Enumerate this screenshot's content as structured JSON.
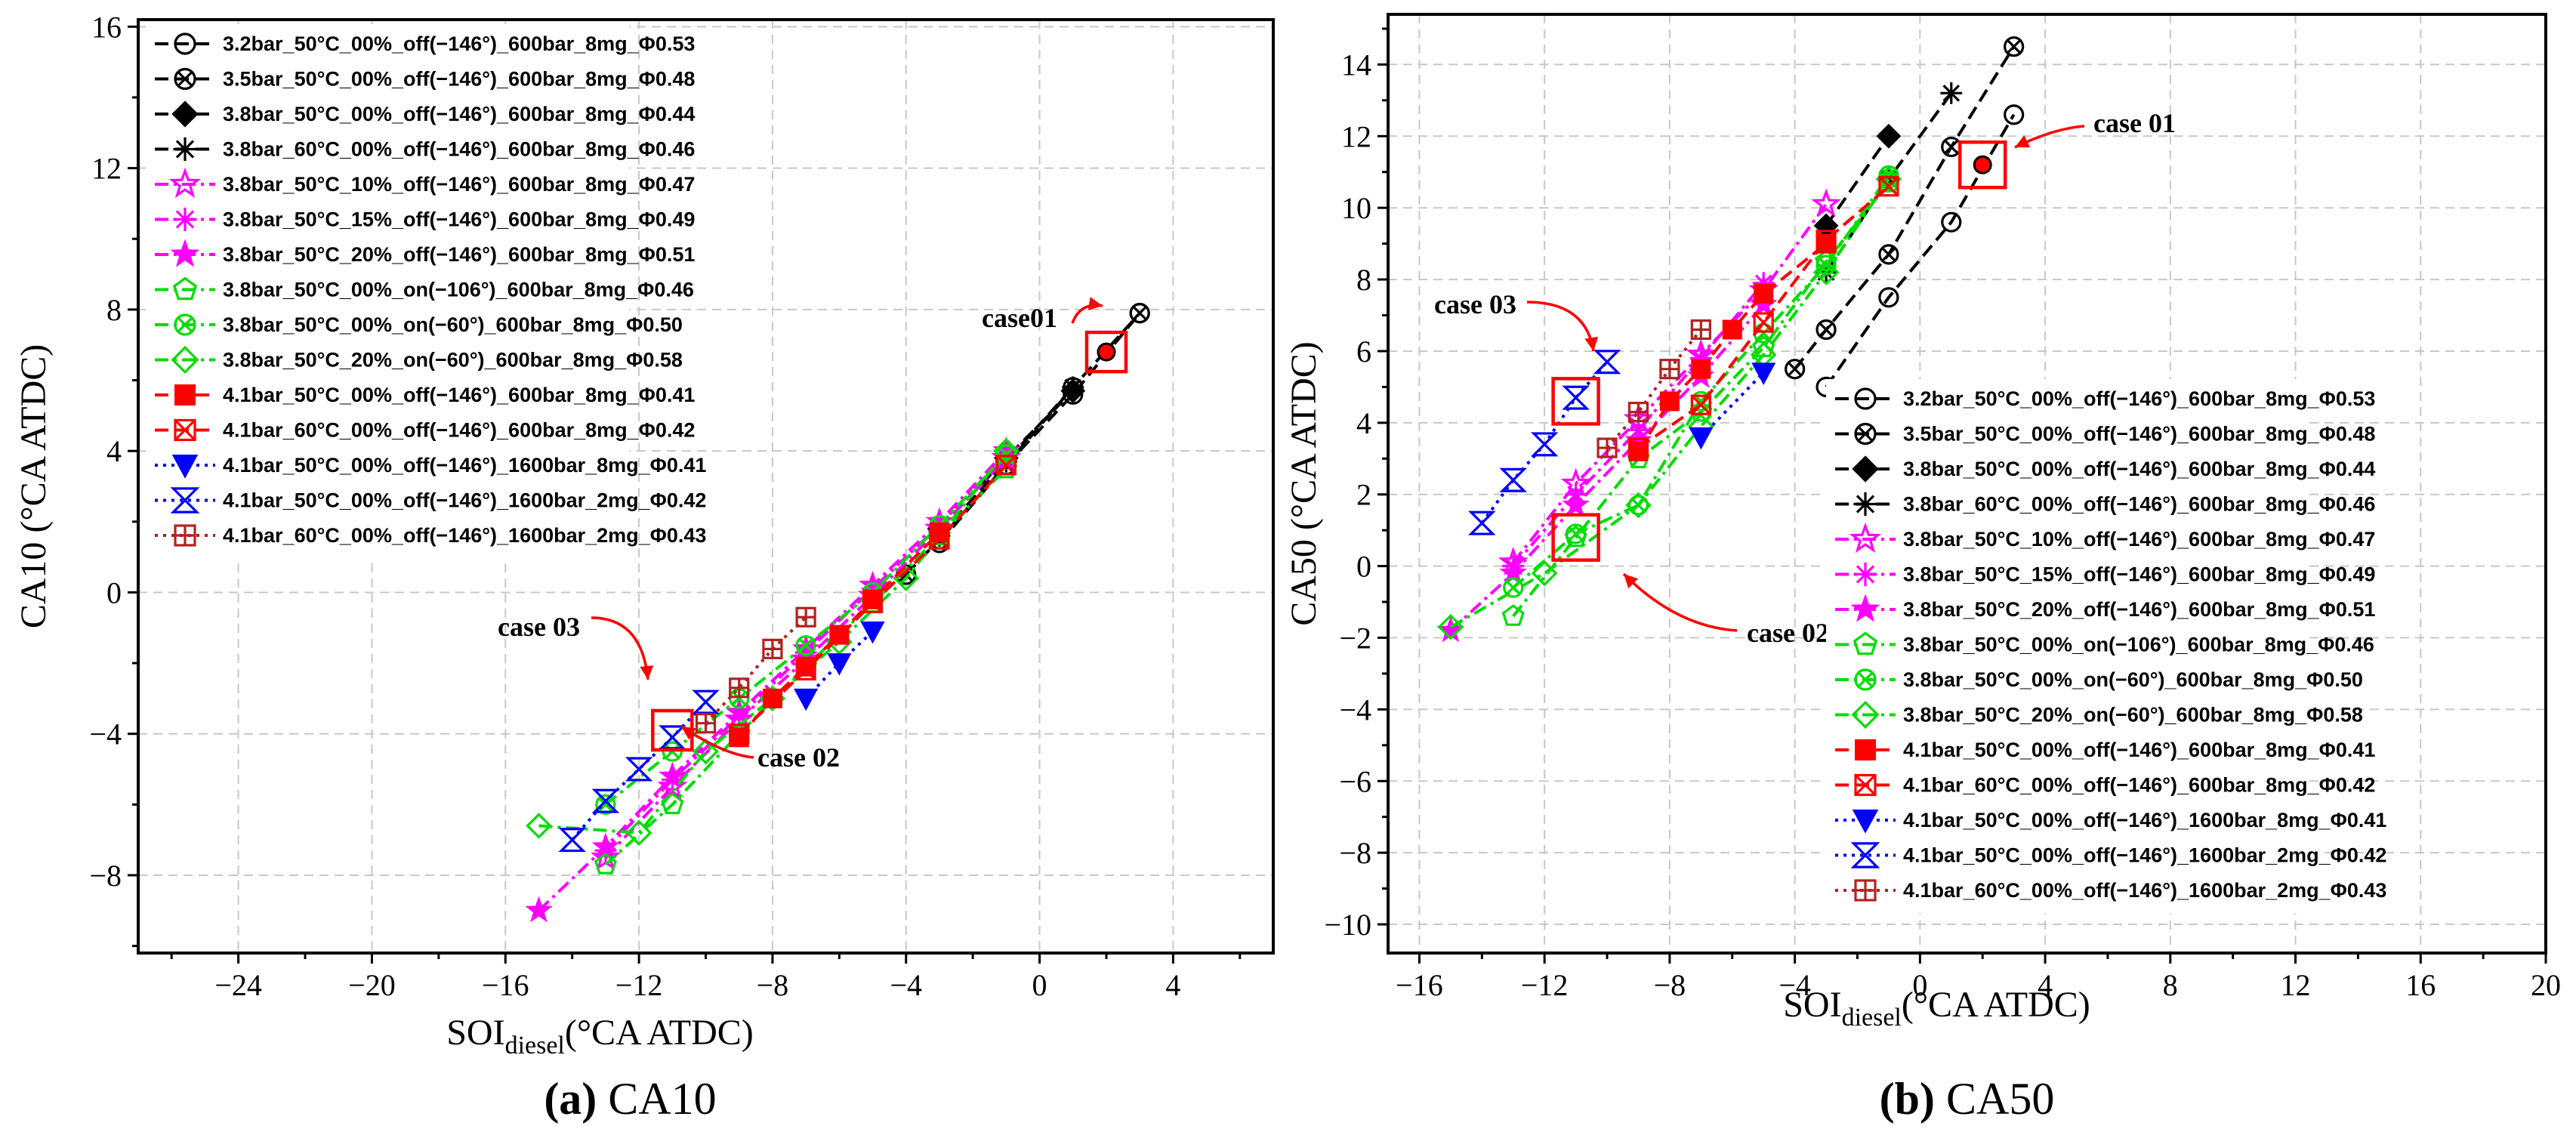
{
  "chart_data": [
    {
      "type": "scatter",
      "panel_caption": {
        "letter": "(a)",
        "text": " CA10"
      },
      "xlabel": {
        "main": "SOI",
        "sub": "diesel",
        "suffix": "(°CA ATDC)"
      },
      "ylabel": "CA10 (°CA ATDC)",
      "xlim": [
        -27,
        7
      ],
      "ylim": [
        -10.2,
        16.2
      ],
      "xticks": [
        -24,
        -20,
        -16,
        -12,
        -8,
        -4,
        0,
        4
      ],
      "yticks": [
        -8,
        -4,
        0,
        4,
        8,
        12,
        16
      ],
      "grid": true,
      "legend_position": "top-left",
      "series": [
        {
          "name": "3.2bar_50°C_00%_off(−146°)_600bar_8mg_Φ0.53",
          "color": "#000000",
          "marker": "circle-open",
          "dash": "dash",
          "points": [
            [
              -3,
              1.4
            ],
            [
              -1,
              3.6
            ],
            [
              1,
              5.6
            ],
            [
              3,
              7.9
            ]
          ]
        },
        {
          "name": "3.5bar_50°C_00%_off(−146°)_600bar_8mg_Φ0.48",
          "color": "#000000",
          "marker": "circle-x",
          "dash": "dash",
          "points": [
            [
              -4,
              0.5
            ],
            [
              -3,
              1.5
            ],
            [
              -1,
              3.6
            ],
            [
              1,
              5.8
            ],
            [
              3,
              7.9
            ]
          ]
        },
        {
          "name": "3.8bar_50°C_00%_off(−146°)_600bar_8mg_Φ0.44",
          "color": "#000000",
          "marker": "diamond",
          "dash": "dash",
          "points": [
            [
              -3,
              1.8
            ],
            [
              -1,
              3.8
            ],
            [
              1,
              5.7
            ]
          ]
        },
        {
          "name": "3.8bar_60°C_00%_off(−146°)_600bar_8mg_Φ0.46",
          "color": "#000000",
          "marker": "asterisk",
          "dash": "dash",
          "points": [
            [
              -3,
              1.6
            ],
            [
              -1,
              3.7
            ],
            [
              1,
              5.8
            ]
          ]
        },
        {
          "name": "3.8bar_50°C_10%_off(−146°)_600bar_8mg_Φ0.47",
          "color": "#ff00ff",
          "marker": "star-open",
          "dash": "dashdot",
          "points": [
            [
              -13,
              -7.5
            ],
            [
              -11,
              -5.5
            ],
            [
              -9,
              -3.6
            ],
            [
              -7,
              -1.9
            ],
            [
              -5,
              -0.1
            ],
            [
              -3,
              1.8
            ],
            [
              -1,
              3.8
            ]
          ]
        },
        {
          "name": "3.8bar_50°C_15%_off(−146°)_600bar_8mg_Φ0.49",
          "color": "#ff00ff",
          "marker": "asterisk",
          "dash": "dashdot",
          "points": [
            [
              -13,
              -7.3
            ],
            [
              -11,
              -5.3
            ],
            [
              -9,
              -3.5
            ],
            [
              -7,
              -1.7
            ],
            [
              -5,
              0.1
            ],
            [
              -3,
              1.9
            ],
            [
              -1,
              3.9
            ]
          ]
        },
        {
          "name": "3.8bar_50°C_20%_off(−146°)_600bar_8mg_Φ0.51",
          "color": "#ff00ff",
          "marker": "star",
          "dash": "dashdot",
          "points": [
            [
              -15,
              -9
            ],
            [
              -13,
              -7.2
            ],
            [
              -11,
              -5.2
            ],
            [
              -9,
              -3.4
            ],
            [
              -7,
              -1.6
            ],
            [
              -5,
              0.2
            ],
            [
              -3,
              2
            ],
            [
              -1,
              4
            ]
          ]
        },
        {
          "name": "3.8bar_50°C_00%_on(−106°)_600bar_8mg_Φ0.46",
          "color": "#00dd00",
          "marker": "pentagon-open",
          "dash": "dashdot",
          "points": [
            [
              -13,
              -7.7
            ],
            [
              -11,
              -6
            ],
            [
              -9,
              -4
            ],
            [
              -7,
              -2.1
            ],
            [
              -5,
              -0.3
            ],
            [
              -3,
              1.6
            ],
            [
              -1,
              3.5
            ]
          ]
        },
        {
          "name": "3.8bar_50°C_00%_on(−60°)_600bar_8mg_Φ0.50",
          "color": "#00dd00",
          "marker": "circle-x",
          "dash": "dashdot",
          "points": [
            [
              -13,
              -6
            ],
            [
              -11,
              -4.5
            ],
            [
              -9,
              -3
            ],
            [
              -7,
              -1.5
            ],
            [
              -5,
              0
            ],
            [
              -3,
              1.9
            ],
            [
              -1,
              3.9
            ]
          ]
        },
        {
          "name": "3.8bar_50°C_20%_on(−60°)_600bar_8mg_Φ0.58",
          "color": "#00dd00",
          "marker": "diamond-open",
          "dash": "dashdot",
          "points": [
            [
              -15,
              -6.6
            ],
            [
              -12,
              -6.8
            ],
            [
              -10,
              -4.5
            ],
            [
              -8,
              -3
            ],
            [
              -6,
              -1.4
            ],
            [
              -4,
              0.4
            ],
            [
              -1,
              4
            ]
          ]
        },
        {
          "name": "4.1bar_50°C_00%_off(−146°)_600bar_8mg_Φ0.41",
          "color": "#ff0000",
          "marker": "square",
          "dash": "dash",
          "points": [
            [
              -9,
              -4.1
            ],
            [
              -8,
              -3
            ],
            [
              -7,
              -2.1
            ],
            [
              -6,
              -1.2
            ],
            [
              -5,
              -0.2
            ],
            [
              -3,
              1.7
            ]
          ]
        },
        {
          "name": "4.1bar_60°C_00%_off(−146°)_600bar_8mg_Φ0.42",
          "color": "#ff0000",
          "marker": "square-x",
          "dash": "dash",
          "points": [
            [
              -9,
              -4
            ],
            [
              -7,
              -2.2
            ],
            [
              -5,
              -0.3
            ],
            [
              -3,
              1.5
            ],
            [
              -1,
              3.6
            ]
          ]
        },
        {
          "name": "4.1bar_50°C_00%_off(−146°)_1600bar_8mg_Φ0.41",
          "color": "#0000ff",
          "marker": "triangle-down",
          "dash": "dot",
          "points": [
            [
              -7,
              -3
            ],
            [
              -6,
              -2
            ],
            [
              -5,
              -1.1
            ]
          ]
        },
        {
          "name": "4.1bar_50°C_00%_off(−146°)_1600bar_2mg_Φ0.42",
          "color": "#0000ff",
          "marker": "x-hourglass",
          "dash": "dot",
          "points": [
            [
              -14,
              -7
            ],
            [
              -13,
              -5.9
            ],
            [
              -12,
              -5
            ],
            [
              -11,
              -4.1
            ],
            [
              -10,
              -3.1
            ]
          ]
        },
        {
          "name": "4.1bar_60°C_00%_off(−146°)_1600bar_2mg_Φ0.43",
          "color": "#b22222",
          "marker": "square-plus",
          "dash": "dot",
          "points": [
            [
              -10,
              -3.7
            ],
            [
              -9,
              -2.7
            ],
            [
              -8,
              -1.6
            ],
            [
              -7,
              -0.7
            ]
          ]
        }
      ],
      "highlights": [
        {
          "label": "case01",
          "x": 2.0,
          "y": 6.8,
          "dot": true
        },
        {
          "label": "case 03",
          "x": -11.0,
          "y": -3.9,
          "dot": false
        },
        {
          "label": "case 02",
          "x": -11.0,
          "y": -3.9,
          "dot": false
        }
      ]
    },
    {
      "type": "scatter",
      "panel_caption": {
        "letter": "(b)",
        "text": " CA50"
      },
      "xlabel": {
        "main": "SOI",
        "sub": "diesel",
        "suffix": "(°CA ATDC)"
      },
      "ylabel": "CA50 (°CA ATDC)",
      "xlim": [
        -17,
        20
      ],
      "ylim": [
        -10.8,
        15.4
      ],
      "xticks": [
        -16,
        -12,
        -8,
        -4,
        0,
        4,
        8,
        12,
        16,
        20
      ],
      "yticks": [
        -10,
        -8,
        -6,
        -4,
        -2,
        0,
        2,
        4,
        6,
        8,
        10,
        12,
        14
      ],
      "grid": true,
      "legend_position": "bottom-right",
      "series": [
        {
          "name": "3.2bar_50°C_00%_off(−146°)_600bar_8mg_Φ0.53",
          "color": "#000000",
          "marker": "circle-open",
          "dash": "dash",
          "points": [
            [
              -3,
              5
            ],
            [
              -1,
              7.5
            ],
            [
              1,
              9.6
            ],
            [
              3,
              12.6
            ]
          ]
        },
        {
          "name": "3.5bar_50°C_00%_off(−146°)_600bar_8mg_Φ0.48",
          "color": "#000000",
          "marker": "circle-x",
          "dash": "dash",
          "points": [
            [
              -4,
              5.5
            ],
            [
              -3,
              6.6
            ],
            [
              -1,
              8.7
            ],
            [
              1,
              11.7
            ],
            [
              3,
              14.5
            ]
          ]
        },
        {
          "name": "3.8bar_50°C_00%_off(−146°)_600bar_8mg_Φ0.44",
          "color": "#000000",
          "marker": "diamond",
          "dash": "dash",
          "points": [
            [
              -3,
              9.5
            ],
            [
              -1,
              12
            ]
          ]
        },
        {
          "name": "3.8bar_60°C_00%_off(−146°)_600bar_8mg_Φ0.46",
          "color": "#000000",
          "marker": "asterisk",
          "dash": "dash",
          "points": [
            [
              -3,
              8.2
            ],
            [
              -1,
              10.8
            ],
            [
              1,
              13.2
            ]
          ]
        },
        {
          "name": "3.8bar_50°C_10%_off(−146°)_600bar_8mg_Φ0.47",
          "color": "#ff00ff",
          "marker": "star-open",
          "dash": "dashdot",
          "points": [
            [
              -13,
              0.1
            ],
            [
              -11,
              2.3
            ],
            [
              -9,
              4.1
            ],
            [
              -7,
              5.9
            ],
            [
              -5,
              7.7
            ],
            [
              -3,
              10.1
            ]
          ]
        },
        {
          "name": "3.8bar_50°C_15%_off(−146°)_600bar_8mg_Φ0.49",
          "color": "#ff00ff",
          "marker": "asterisk",
          "dash": "dashdot",
          "points": [
            [
              -13,
              0
            ],
            [
              -11,
              2
            ],
            [
              -9,
              3.8
            ],
            [
              -7,
              5.8
            ],
            [
              -5,
              7.9
            ]
          ]
        },
        {
          "name": "3.8bar_50°C_20%_off(−146°)_600bar_8mg_Φ0.51",
          "color": "#ff00ff",
          "marker": "star",
          "dash": "dashdot",
          "points": [
            [
              -15,
              -1.8
            ],
            [
              -13,
              -0.2
            ],
            [
              -11,
              1.7
            ],
            [
              -9,
              3.5
            ],
            [
              -7,
              5.3
            ],
            [
              -5,
              7.3
            ]
          ]
        },
        {
          "name": "3.8bar_50°C_00%_on(−106°)_600bar_8mg_Φ0.46",
          "color": "#00dd00",
          "marker": "pentagon-open",
          "dash": "dashdot",
          "points": [
            [
              -13,
              -1.4
            ],
            [
              -11,
              0.8
            ],
            [
              -9,
              3
            ],
            [
              -7,
              4.3
            ],
            [
              -5,
              6.1
            ],
            [
              -3,
              8.5
            ],
            [
              -1,
              10.7
            ]
          ]
        },
        {
          "name": "3.8bar_50°C_00%_on(−60°)_600bar_8mg_Φ0.50",
          "color": "#00dd00",
          "marker": "circle-x",
          "dash": "dashdot",
          "points": [
            [
              -13,
              -0.6
            ],
            [
              -11,
              0.9
            ],
            [
              -9,
              1.7
            ],
            [
              -7,
              4.6
            ],
            [
              -5,
              6.5
            ],
            [
              -3,
              8.4
            ],
            [
              -1,
              10.9
            ]
          ]
        },
        {
          "name": "3.8bar_50°C_20%_on(−60°)_600bar_8mg_Φ0.58",
          "color": "#00dd00",
          "marker": "diamond-open",
          "dash": "dashdot",
          "points": [
            [
              -15,
              -1.7
            ],
            [
              -12,
              -0.2
            ],
            [
              -9,
              1.7
            ],
            [
              -7,
              3.9
            ],
            [
              -5,
              5.9
            ],
            [
              -3,
              8.2
            ],
            [
              -1,
              10.8
            ]
          ]
        },
        {
          "name": "4.1bar_50°C_00%_off(−146°)_600bar_8mg_Φ0.41",
          "color": "#ff0000",
          "marker": "square",
          "dash": "dash",
          "points": [
            [
              -9,
              3.2
            ],
            [
              -8,
              4.6
            ],
            [
              -7,
              5.5
            ],
            [
              -6,
              6.6
            ],
            [
              -5,
              7.6
            ],
            [
              -3,
              9
            ]
          ]
        },
        {
          "name": "4.1bar_60°C_00%_off(−146°)_600bar_8mg_Φ0.42",
          "color": "#ff0000",
          "marker": "square-x",
          "dash": "dash",
          "points": [
            [
              -9,
              3.3
            ],
            [
              -7,
              4.5
            ],
            [
              -5,
              6.8
            ],
            [
              -3,
              9.1
            ],
            [
              -1,
              10.6
            ]
          ]
        },
        {
          "name": "4.1bar_50°C_00%_off(−146°)_1600bar_8mg_Φ0.41",
          "color": "#0000ff",
          "marker": "triangle-down",
          "dash": "dot",
          "points": [
            [
              -7,
              3.6
            ],
            [
              -5,
              5.4
            ]
          ]
        },
        {
          "name": "4.1bar_50°C_00%_off(−146°)_1600bar_2mg_Φ0.42",
          "color": "#0000ff",
          "marker": "x-hourglass",
          "dash": "dot",
          "points": [
            [
              -14,
              1.2
            ],
            [
              -13,
              2.4
            ],
            [
              -12,
              3.4
            ],
            [
              -11,
              4.7
            ],
            [
              -10,
              5.7
            ]
          ]
        },
        {
          "name": "4.1bar_60°C_00%_off(−146°)_1600bar_2mg_Φ0.43",
          "color": "#b22222",
          "marker": "square-plus",
          "dash": "dot",
          "points": [
            [
              -10,
              3.3
            ],
            [
              -9,
              4.3
            ],
            [
              -8,
              5.5
            ],
            [
              -7,
              6.6
            ]
          ]
        }
      ],
      "highlights": [
        {
          "label": "case 01",
          "x": 2.0,
          "y": 11.2,
          "dot": true
        },
        {
          "label": "case 03",
          "x": -11.0,
          "y": 4.6,
          "dot": false
        },
        {
          "label": "case 02",
          "x": -11.0,
          "y": 0.8,
          "dot": false
        }
      ]
    }
  ]
}
